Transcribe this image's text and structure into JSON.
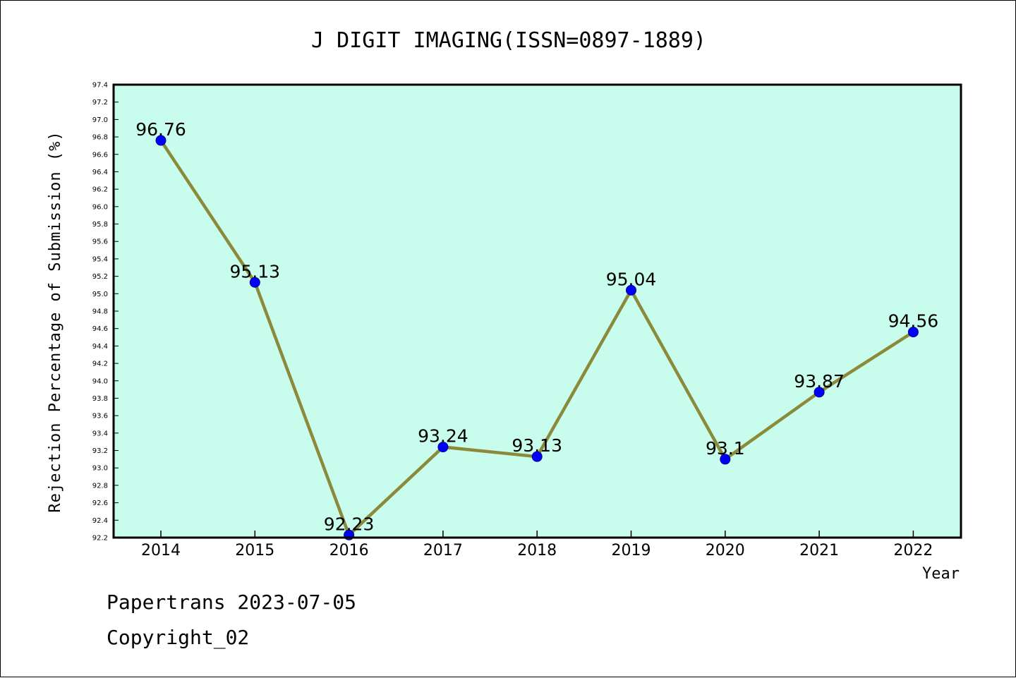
{
  "colors": {
    "plot_background": "#c8fcec",
    "line": "#8b8a3a",
    "marker": "#0000ff",
    "marker_edge": "#00008b",
    "axes": "#000000"
  },
  "chart_data": {
    "type": "line",
    "title": "J DIGIT IMAGING(ISSN=0897-1889)",
    "xlabel": "Year",
    "ylabel": "Rejection Percentage of Submission (%)",
    "categories": [
      "2014",
      "2015",
      "2016",
      "2017",
      "2018",
      "2019",
      "2020",
      "2021",
      "2022"
    ],
    "values": [
      96.76,
      95.13,
      92.23,
      93.24,
      93.13,
      95.04,
      93.1,
      93.87,
      94.56
    ],
    "data_labels": [
      "96.76",
      "95.13",
      "92.23",
      "93.24",
      "93.13",
      "95.04",
      "93.1",
      "93.87",
      "94.56"
    ],
    "ylim": [
      92.2,
      97.4
    ],
    "yticks": [
      "92.2",
      "92.4",
      "92.6",
      "92.8",
      "93.0",
      "93.2",
      "93.4",
      "93.6",
      "93.8",
      "94.0",
      "94.2",
      "94.4",
      "94.6",
      "94.8",
      "95.0",
      "95.2",
      "95.4",
      "95.6",
      "95.8",
      "96.0",
      "96.2",
      "96.4",
      "96.6",
      "96.8",
      "97.0",
      "97.2",
      "97.4"
    ],
    "grid": false,
    "legend": "none"
  },
  "footer": {
    "line1": "Papertrans 2023-07-05",
    "line2": "Copyright_02"
  }
}
